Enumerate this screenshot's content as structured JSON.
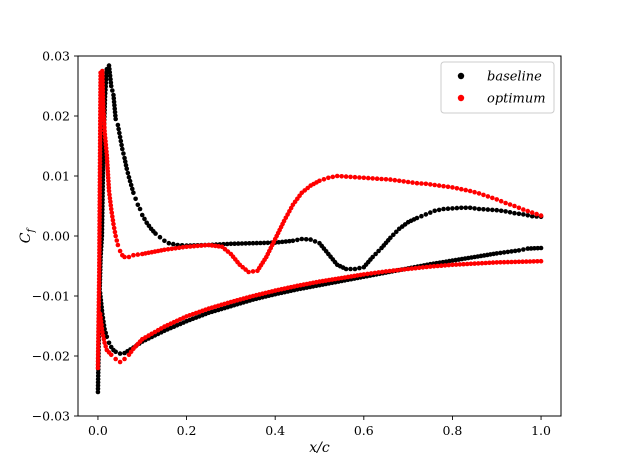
{
  "chart_data": {
    "type": "scatter",
    "title": "",
    "xlabel": "x/c",
    "ylabel": "C_f",
    "xlim": [
      -0.045,
      1.045
    ],
    "ylim": [
      -0.03,
      0.03
    ],
    "xticks": [
      0.0,
      0.2,
      0.4,
      0.6,
      0.8,
      1.0
    ],
    "xtick_labels": [
      "0.0",
      "0.2",
      "0.4",
      "0.6",
      "0.8",
      "1.0"
    ],
    "yticks": [
      0.03,
      0.02,
      0.01,
      0.0,
      -0.01,
      -0.02,
      -0.03
    ],
    "ytick_labels": [
      "0.03",
      "0.02",
      "0.01",
      "0.00",
      "−0.01",
      "−0.02",
      "−0.03"
    ],
    "grid": false,
    "legend_position": "top-right",
    "series": [
      {
        "name": "baseline",
        "color": "#000000",
        "upper_surface": [
          [
            0.0,
            -0.026
          ],
          [
            0.003,
            -0.0115
          ],
          [
            0.006,
            -0.0035
          ],
          [
            0.009,
            0.0
          ],
          [
            0.012,
            0.0138
          ],
          [
            0.016,
            0.0232
          ],
          [
            0.02,
            0.0278
          ],
          [
            0.025,
            0.0284
          ],
          [
            0.03,
            0.025
          ],
          [
            0.035,
            0.0235
          ],
          [
            0.04,
            0.0195
          ],
          [
            0.045,
            0.0185
          ],
          [
            0.05,
            0.0165
          ],
          [
            0.055,
            0.0145
          ],
          [
            0.06,
            0.013
          ],
          [
            0.065,
            0.0112
          ],
          [
            0.07,
            0.0098
          ],
          [
            0.075,
            0.0085
          ],
          [
            0.08,
            0.0072
          ],
          [
            0.085,
            0.0062
          ],
          [
            0.09,
            0.0052
          ],
          [
            0.095,
            0.0045
          ],
          [
            0.1,
            0.0035
          ],
          [
            0.11,
            0.0022
          ],
          [
            0.12,
            0.0012
          ],
          [
            0.13,
            0.0004
          ],
          [
            0.14,
            -0.0002
          ],
          [
            0.15,
            -0.0008
          ],
          [
            0.16,
            -0.0012
          ],
          [
            0.18,
            -0.0015
          ],
          [
            0.2,
            -0.0016
          ],
          [
            0.25,
            -0.0015
          ],
          [
            0.3,
            -0.0013
          ],
          [
            0.35,
            -0.0012
          ],
          [
            0.4,
            -0.0011
          ],
          [
            0.44,
            -0.0008
          ],
          [
            0.46,
            -0.0005
          ],
          [
            0.48,
            -0.0006
          ],
          [
            0.5,
            -0.0012
          ],
          [
            0.52,
            -0.003
          ],
          [
            0.54,
            -0.0048
          ],
          [
            0.56,
            -0.0055
          ],
          [
            0.58,
            -0.0055
          ],
          [
            0.6,
            -0.0052
          ],
          [
            0.62,
            -0.0035
          ],
          [
            0.64,
            -0.002
          ],
          [
            0.66,
            -0.0003
          ],
          [
            0.68,
            0.0012
          ],
          [
            0.7,
            0.0023
          ],
          [
            0.72,
            0.003
          ],
          [
            0.74,
            0.0036
          ],
          [
            0.76,
            0.0042
          ],
          [
            0.78,
            0.0045
          ],
          [
            0.8,
            0.0046
          ],
          [
            0.82,
            0.0047
          ],
          [
            0.84,
            0.0047
          ],
          [
            0.86,
            0.0045
          ],
          [
            0.88,
            0.0044
          ],
          [
            0.9,
            0.0043
          ],
          [
            0.92,
            0.0041
          ],
          [
            0.94,
            0.0038
          ],
          [
            0.96,
            0.0036
          ],
          [
            0.98,
            0.0033
          ],
          [
            1.0,
            0.0032
          ]
        ],
        "lower_surface": [
          [
            0.005,
            -0.0095
          ],
          [
            0.01,
            -0.013
          ],
          [
            0.015,
            -0.0155
          ],
          [
            0.02,
            -0.0168
          ],
          [
            0.025,
            -0.0178
          ],
          [
            0.03,
            -0.0185
          ],
          [
            0.035,
            -0.019
          ],
          [
            0.04,
            -0.0193
          ],
          [
            0.05,
            -0.0196
          ],
          [
            0.06,
            -0.0195
          ],
          [
            0.08,
            -0.0186
          ],
          [
            0.1,
            -0.0176
          ],
          [
            0.15,
            -0.0158
          ],
          [
            0.2,
            -0.0142
          ],
          [
            0.25,
            -0.0128
          ],
          [
            0.3,
            -0.0117
          ],
          [
            0.35,
            -0.0106
          ],
          [
            0.4,
            -0.0097
          ],
          [
            0.45,
            -0.0089
          ],
          [
            0.5,
            -0.0082
          ],
          [
            0.55,
            -0.0075
          ],
          [
            0.6,
            -0.0068
          ],
          [
            0.65,
            -0.0061
          ],
          [
            0.7,
            -0.0054
          ],
          [
            0.75,
            -0.0047
          ],
          [
            0.8,
            -0.0041
          ],
          [
            0.85,
            -0.0035
          ],
          [
            0.9,
            -0.0029
          ],
          [
            0.95,
            -0.0024
          ],
          [
            0.97,
            -0.0021
          ],
          [
            1.0,
            -0.002
          ]
        ]
      },
      {
        "name": "optimum",
        "color": "#ff0000",
        "upper_surface": [
          [
            0.0,
            -0.022
          ],
          [
            0.003,
            -0.0055
          ],
          [
            0.006,
            0.0272
          ],
          [
            0.01,
            0.0275
          ],
          [
            0.012,
            0.0215
          ],
          [
            0.015,
            0.0175
          ],
          [
            0.02,
            0.0135
          ],
          [
            0.025,
            0.0075
          ],
          [
            0.03,
            0.0045
          ],
          [
            0.035,
            0.002
          ],
          [
            0.04,
            0.0
          ],
          [
            0.045,
            -0.0015
          ],
          [
            0.05,
            -0.0025
          ],
          [
            0.055,
            -0.0032
          ],
          [
            0.06,
            -0.0035
          ],
          [
            0.07,
            -0.0035
          ],
          [
            0.08,
            -0.0032
          ],
          [
            0.1,
            -0.003
          ],
          [
            0.15,
            -0.0023
          ],
          [
            0.2,
            -0.0018
          ],
          [
            0.25,
            -0.0015
          ],
          [
            0.28,
            -0.0018
          ],
          [
            0.3,
            -0.003
          ],
          [
            0.32,
            -0.0048
          ],
          [
            0.34,
            -0.006
          ],
          [
            0.36,
            -0.0058
          ],
          [
            0.38,
            -0.0035
          ],
          [
            0.4,
            -0.0005
          ],
          [
            0.42,
            0.0025
          ],
          [
            0.44,
            0.0052
          ],
          [
            0.46,
            0.0072
          ],
          [
            0.48,
            0.0084
          ],
          [
            0.5,
            0.0092
          ],
          [
            0.52,
            0.0097
          ],
          [
            0.54,
            0.01
          ],
          [
            0.56,
            0.0099
          ],
          [
            0.58,
            0.0098
          ],
          [
            0.6,
            0.0097
          ],
          [
            0.62,
            0.0096
          ],
          [
            0.64,
            0.0095
          ],
          [
            0.66,
            0.0094
          ],
          [
            0.68,
            0.0092
          ],
          [
            0.7,
            0.009
          ],
          [
            0.72,
            0.0088
          ],
          [
            0.74,
            0.0087
          ],
          [
            0.76,
            0.0085
          ],
          [
            0.78,
            0.0083
          ],
          [
            0.8,
            0.0081
          ],
          [
            0.82,
            0.0078
          ],
          [
            0.84,
            0.0075
          ],
          [
            0.86,
            0.0071
          ],
          [
            0.88,
            0.0066
          ],
          [
            0.9,
            0.0061
          ],
          [
            0.92,
            0.0055
          ],
          [
            0.94,
            0.005
          ],
          [
            0.96,
            0.0044
          ],
          [
            0.98,
            0.0039
          ],
          [
            1.0,
            0.0034
          ]
        ],
        "lower_surface": [
          [
            0.005,
            -0.013
          ],
          [
            0.01,
            -0.016
          ],
          [
            0.015,
            -0.0178
          ],
          [
            0.02,
            -0.019
          ],
          [
            0.03,
            -0.0198
          ],
          [
            0.04,
            -0.0205
          ],
          [
            0.05,
            -0.021
          ],
          [
            0.06,
            -0.0205
          ],
          [
            0.07,
            -0.0198
          ],
          [
            0.08,
            -0.0188
          ],
          [
            0.1,
            -0.0172
          ],
          [
            0.15,
            -0.0151
          ],
          [
            0.2,
            -0.0134
          ],
          [
            0.25,
            -0.0121
          ],
          [
            0.3,
            -0.011
          ],
          [
            0.35,
            -0.01
          ],
          [
            0.4,
            -0.0091
          ],
          [
            0.45,
            -0.0083
          ],
          [
            0.5,
            -0.0076
          ],
          [
            0.55,
            -0.007
          ],
          [
            0.6,
            -0.0064
          ],
          [
            0.65,
            -0.0059
          ],
          [
            0.7,
            -0.0055
          ],
          [
            0.75,
            -0.0051
          ],
          [
            0.8,
            -0.0048
          ],
          [
            0.85,
            -0.0046
          ],
          [
            0.9,
            -0.0044
          ],
          [
            0.95,
            -0.0043
          ],
          [
            1.0,
            -0.0042
          ]
        ]
      }
    ]
  }
}
